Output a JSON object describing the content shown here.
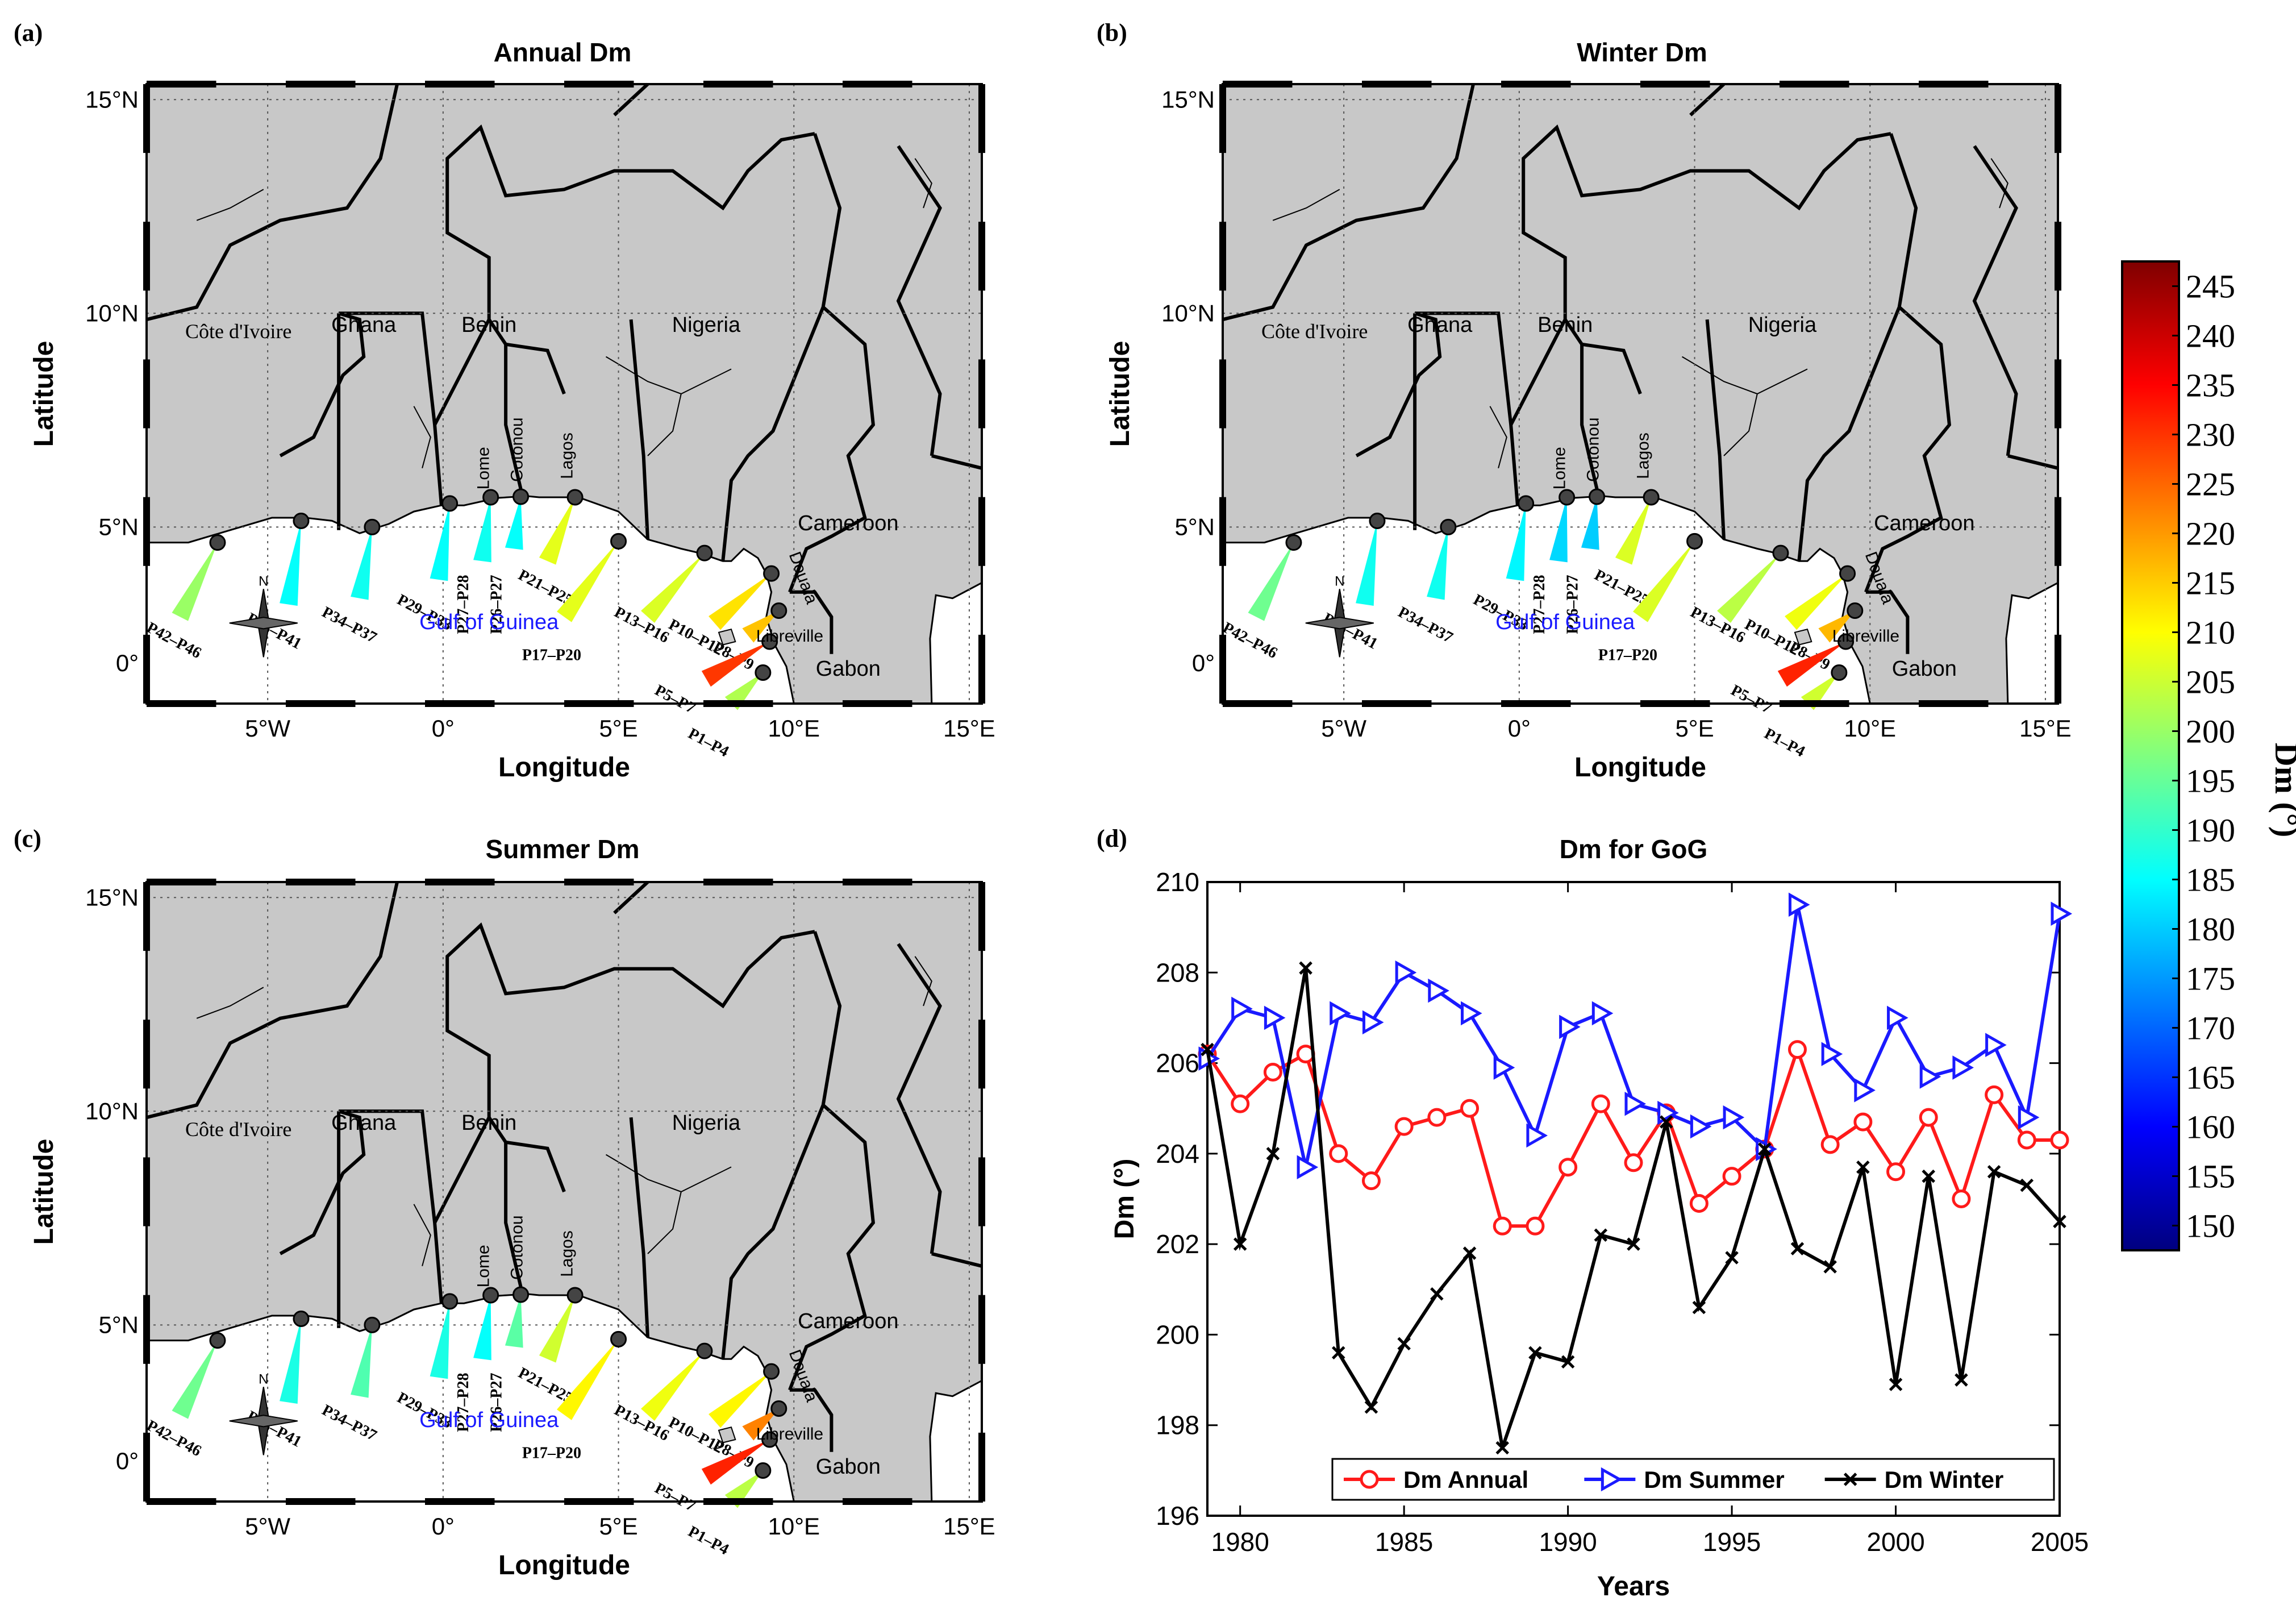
{
  "colors": {
    "land": "#c8c8c8",
    "sea": "#ffffff",
    "annual": "#ff1a1a",
    "summer": "#1a1aff",
    "winter": "#000000",
    "gulf_label": "#1a1aff"
  },
  "colorbar": {
    "label": "Dm (°)",
    "ticks": [
      "245",
      "240",
      "235",
      "230",
      "225",
      "220",
      "215",
      "210",
      "205",
      "200",
      "195",
      "190",
      "185",
      "180",
      "175",
      "170",
      "165",
      "160",
      "155",
      "150"
    ],
    "min": 150,
    "max": 245
  },
  "map_common": {
    "xlabel": "Longitude",
    "ylabel": "Latitude",
    "lon_ticks": [
      "5°W",
      "0°",
      "5°E",
      "10°E",
      "15°E"
    ],
    "lat_ticks": [
      "15°N",
      "10°N",
      "5°N",
      "0°"
    ],
    "countries": [
      "Ghana",
      "Benin",
      "Nigeria",
      "Cameroon",
      "Gabon"
    ],
    "country_serif": "Côte d'Ivoire",
    "cities": [
      "Lome",
      "Cotonou",
      "Lagos",
      "Douala",
      "Libreville"
    ],
    "gulf_label": "Gulf of Guinea",
    "compass_label": "N",
    "segments": [
      "P42–P46",
      "P38–P41",
      "P34–P37",
      "P29–P33",
      "P27–P28",
      "P26–P27",
      "P21–P25",
      "P17–P20",
      "P13–P16",
      "P10–P12",
      "P8–P9",
      "P5–P7",
      "P1–P4"
    ]
  },
  "maps": [
    {
      "letter": "(a)",
      "title": "Annual Dm",
      "dm": [
        200,
        186,
        187,
        186,
        187,
        186,
        207,
        207,
        206,
        212,
        215,
        228,
        202
      ]
    },
    {
      "letter": "(b)",
      "title": "Winter Dm",
      "dm": [
        196,
        187,
        187,
        185,
        182,
        181,
        206,
        206,
        203,
        208,
        216,
        230,
        205
      ]
    },
    {
      "letter": "(c)",
      "title": "Summer Dm",
      "dm": [
        196,
        188,
        193,
        188,
        186,
        194,
        205,
        210,
        208,
        210,
        221,
        230,
        203
      ]
    }
  ],
  "chart_data": {
    "letter": "(d)",
    "type": "line",
    "title": "Dm for GoG",
    "xlabel": "Years",
    "ylabel": "Dm (°)",
    "xlim": [
      1979,
      2005
    ],
    "ylim": [
      196,
      210
    ],
    "xticks": [
      1980,
      1985,
      1990,
      1995,
      2000,
      2005
    ],
    "yticks": [
      196,
      198,
      200,
      202,
      204,
      206,
      208,
      210
    ],
    "grid": false,
    "legend_position": "bottom",
    "x": [
      1979,
      1980,
      1981,
      1982,
      1983,
      1984,
      1985,
      1986,
      1987,
      1988,
      1989,
      1990,
      1991,
      1992,
      1993,
      1994,
      1995,
      1996,
      1997,
      1998,
      1999,
      2000,
      2001,
      2002,
      2003,
      2004,
      2005
    ],
    "series": [
      {
        "name": "Dm Annual",
        "color": "#ff1a1a",
        "marker": "circle",
        "values": [
          206.2,
          205.1,
          205.8,
          206.2,
          204.0,
          203.4,
          204.6,
          204.8,
          205.0,
          202.4,
          202.4,
          203.7,
          205.1,
          203.8,
          204.9,
          202.9,
          203.5,
          204.1,
          206.3,
          204.2,
          204.7,
          203.6,
          204.8,
          203.0,
          205.3,
          204.3,
          204.3
        ]
      },
      {
        "name": "Dm Summer",
        "color": "#1a1aff",
        "marker": "triangle-right",
        "values": [
          206.1,
          207.2,
          207.0,
          203.7,
          207.1,
          206.9,
          208.0,
          207.6,
          207.1,
          205.9,
          204.4,
          206.8,
          207.1,
          205.1,
          204.9,
          204.6,
          204.8,
          204.1,
          209.5,
          206.2,
          205.4,
          207.0,
          205.7,
          205.9,
          206.4,
          204.8,
          209.3
        ]
      },
      {
        "name": "Dm Winter",
        "color": "#000000",
        "marker": "x",
        "values": [
          206.3,
          202.0,
          204.0,
          208.1,
          199.6,
          198.4,
          199.8,
          200.9,
          201.8,
          197.5,
          199.6,
          199.4,
          202.2,
          202.0,
          204.7,
          200.6,
          201.7,
          204.1,
          201.9,
          201.5,
          203.7,
          198.9,
          203.5,
          199.0,
          203.6,
          203.3,
          202.5
        ]
      }
    ]
  }
}
